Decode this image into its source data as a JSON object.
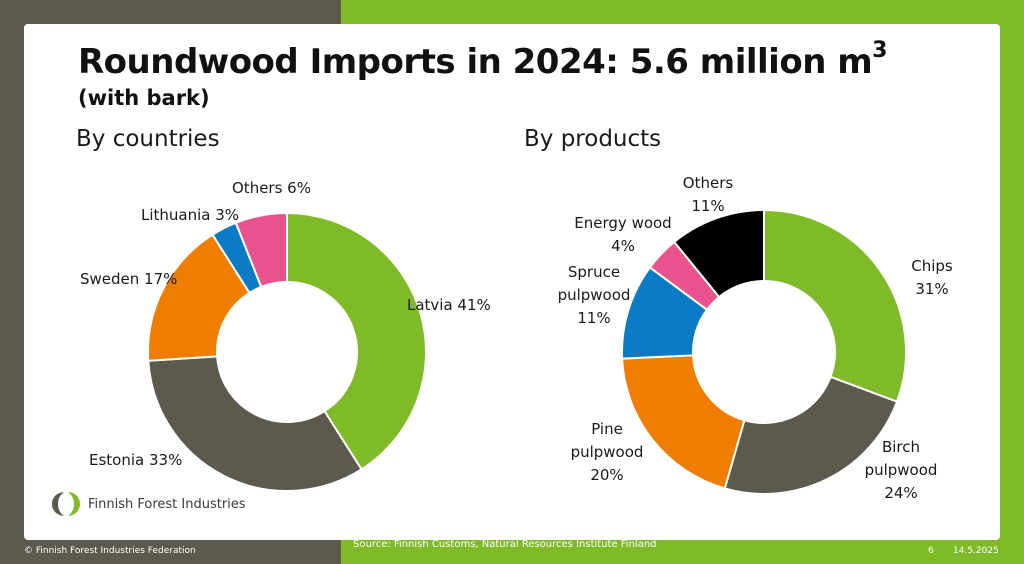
{
  "title": {
    "main": "Roundwood Imports in 2024: 5.6 million m",
    "sup": "3",
    "sub": "(with bark)"
  },
  "sections": {
    "left": "By countries",
    "right": "By products"
  },
  "chart_data": [
    {
      "type": "pie",
      "title": "By countries",
      "donut": true,
      "slices": [
        {
          "name": "Latvia",
          "value": 41,
          "color": "#7fba28",
          "label_lines": [
            "Latvia 41%"
          ]
        },
        {
          "name": "Estonia",
          "value": 33,
          "color": "#5b5a4c",
          "label_lines": [
            "Estonia 33%"
          ]
        },
        {
          "name": "Sweden",
          "value": 17,
          "color": "#ef7d00",
          "label_lines": [
            "Sweden 17%"
          ]
        },
        {
          "name": "Lithuania",
          "value": 3,
          "color": "#0a7bc4",
          "label_lines": [
            "Lithuania 3%"
          ]
        },
        {
          "name": "Others",
          "value": 6,
          "color": "#e9528c",
          "label_lines": [
            "Others 6%"
          ]
        }
      ]
    },
    {
      "type": "pie",
      "title": "By products",
      "donut": true,
      "slices": [
        {
          "name": "Chips",
          "value": 31,
          "color": "#7fba28",
          "label_lines": [
            "Chips",
            "31%"
          ]
        },
        {
          "name": "Birch pulpwood",
          "value": 24,
          "color": "#5b5a4c",
          "label_lines": [
            "Birch",
            "pulpwood",
            "24%"
          ]
        },
        {
          "name": "Pine pulpwood",
          "value": 20,
          "color": "#ef7d00",
          "label_lines": [
            "Pine",
            "pulpwood",
            "20%"
          ]
        },
        {
          "name": "Spruce pulpwood",
          "value": 11,
          "color": "#0a7bc4",
          "label_lines": [
            "Spruce",
            "pulpwood",
            "11%"
          ]
        },
        {
          "name": "Energy wood",
          "value": 4,
          "color": "#e9528c",
          "label_lines": [
            "Energy wood",
            "4%"
          ]
        },
        {
          "name": "Others",
          "value": 11,
          "color": "#000000",
          "label_lines": [
            "Others",
            "11%"
          ]
        }
      ]
    }
  ],
  "logo": {
    "text": "Finnish Forest Industries",
    "colors": [
      "#5b5a4c",
      "#7fba28"
    ]
  },
  "footer": {
    "copyright": "© Finnish Forest Industries Federation",
    "source": "Source: Finnish Customs, Natural Resources Institute Finland",
    "page": "6",
    "date": "14.5.2025"
  }
}
